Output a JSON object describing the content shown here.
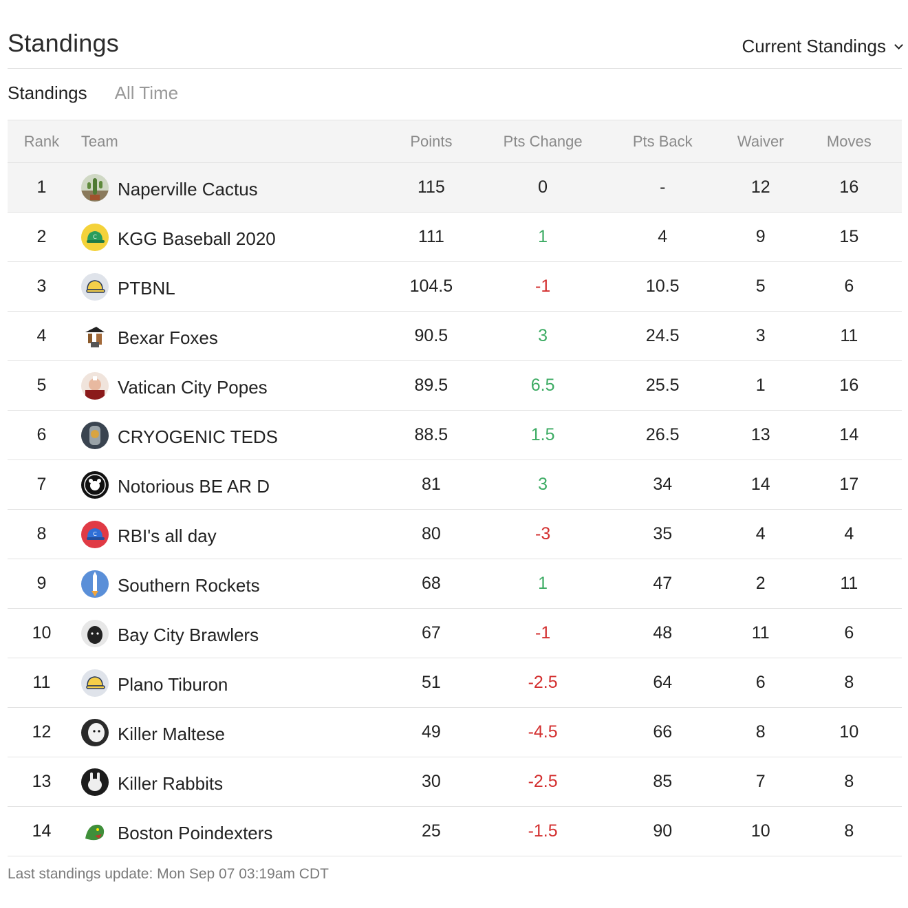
{
  "header": {
    "title": "Standings",
    "view_select": "Current Standings"
  },
  "tabs": [
    {
      "label": "Standings",
      "active": true
    },
    {
      "label": "All Time",
      "active": false
    }
  ],
  "table": {
    "columns": [
      "Rank",
      "Team",
      "Points",
      "Pts Change",
      "Pts Back",
      "Waiver",
      "Moves"
    ],
    "rows": [
      {
        "rank": "1",
        "team": "Naperville Cactus",
        "logo": "cactus-logo",
        "points": "115",
        "change": "0",
        "change_sign": "neutral",
        "back": "-",
        "waiver": "12",
        "moves": "16"
      },
      {
        "rank": "2",
        "team": "KGG Baseball 2020",
        "logo": "green-cap-logo",
        "points": "111",
        "change": "1",
        "change_sign": "positive",
        "back": "4",
        "waiver": "9",
        "moves": "15"
      },
      {
        "rank": "3",
        "team": "PTBNL",
        "logo": "yellow-cap-logo",
        "points": "104.5",
        "change": "-1",
        "change_sign": "negative",
        "back": "10.5",
        "waiver": "5",
        "moves": "6"
      },
      {
        "rank": "4",
        "team": "Bexar Foxes",
        "logo": "pirate-logo",
        "points": "90.5",
        "change": "3",
        "change_sign": "positive",
        "back": "24.5",
        "waiver": "3",
        "moves": "11"
      },
      {
        "rank": "5",
        "team": "Vatican City Popes",
        "logo": "pope-logo",
        "points": "89.5",
        "change": "6.5",
        "change_sign": "positive",
        "back": "25.5",
        "waiver": "1",
        "moves": "16"
      },
      {
        "rank": "6",
        "team": "CRYOGENIC TEDS",
        "logo": "cryo-logo",
        "points": "88.5",
        "change": "1.5",
        "change_sign": "positive",
        "back": "26.5",
        "waiver": "13",
        "moves": "14"
      },
      {
        "rank": "7",
        "team": "Notorious BE AR D",
        "logo": "bear-badge-logo",
        "points": "81",
        "change": "3",
        "change_sign": "positive",
        "back": "34",
        "waiver": "14",
        "moves": "17"
      },
      {
        "rank": "8",
        "team": "RBI's all day",
        "logo": "blue-cap-logo",
        "points": "80",
        "change": "-3",
        "change_sign": "negative",
        "back": "35",
        "waiver": "4",
        "moves": "4"
      },
      {
        "rank": "9",
        "team": "Southern Rockets",
        "logo": "rocket-logo",
        "points": "68",
        "change": "1",
        "change_sign": "positive",
        "back": "47",
        "waiver": "2",
        "moves": "11"
      },
      {
        "rank": "10",
        "team": "Bay City Brawlers",
        "logo": "dog-logo",
        "points": "67",
        "change": "-1",
        "change_sign": "negative",
        "back": "48",
        "waiver": "11",
        "moves": "6"
      },
      {
        "rank": "11",
        "team": "Plano Tiburon",
        "logo": "yellow-cap-logo",
        "points": "51",
        "change": "-2.5",
        "change_sign": "negative",
        "back": "64",
        "waiver": "6",
        "moves": "8"
      },
      {
        "rank": "12",
        "team": "Killer Maltese",
        "logo": "maltese-logo",
        "points": "49",
        "change": "-4.5",
        "change_sign": "negative",
        "back": "66",
        "waiver": "8",
        "moves": "10"
      },
      {
        "rank": "13",
        "team": "Killer Rabbits",
        "logo": "rabbit-logo",
        "points": "30",
        "change": "-2.5",
        "change_sign": "negative",
        "back": "85",
        "waiver": "7",
        "moves": "8"
      },
      {
        "rank": "14",
        "team": "Boston Poindexters",
        "logo": "dragon-logo",
        "points": "25",
        "change": "-1.5",
        "change_sign": "negative",
        "back": "90",
        "waiver": "10",
        "moves": "8"
      }
    ]
  },
  "footer": {
    "last_update": "Last standings update: Mon Sep 07 03:19am CDT"
  },
  "colors": {
    "positive": "#3cab63",
    "negative": "#d32f2f",
    "header_bg": "#f4f4f4",
    "border": "#e2e2e2"
  }
}
